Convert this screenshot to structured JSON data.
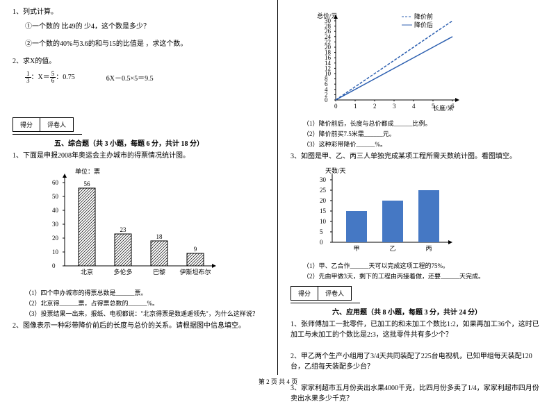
{
  "q1": {
    "title": "1、列式计算。",
    "a": "①一个数的 比49的 少4，这个数是多少？",
    "b": "②一个数的40%与3.6的和与15的比值是 ，求这个数。"
  },
  "q2": {
    "title": "2、求X的值。",
    "eq1a": "1",
    "eq1b": "3",
    "eq1mid": "：X＝",
    "eq1c": "5",
    "eq1d": "6",
    "eq1e": "：0.75",
    "eq2": "6X－0.5×5＝9.5"
  },
  "score": {
    "c1": "得分",
    "c2": "评卷人"
  },
  "sec5": {
    "title": "五、综合题（共 3 小题，每题 6 分，共计 18 分）"
  },
  "s5q1": {
    "stem": "1、下面是申报2008年奥运会主办城市的得票情况统计图。",
    "unit": "单位：票",
    "bars": [
      {
        "label": "北京",
        "value": 56
      },
      {
        "label": "多伦多",
        "value": 23
      },
      {
        "label": "巴黎",
        "value": 18
      },
      {
        "label": "伊斯坦布尔",
        "value": 9
      }
    ],
    "yticks": [
      0,
      10,
      20,
      30,
      40,
      50,
      60
    ],
    "sub1": "（1）四个申办城市的得票总数是______票。",
    "sub2": "（2）北京得______票，占得票总数的______%。",
    "sub3": "（3）投票结果一出来，报纸、电视都说：\"北京得票是数遥遥领先\"，为什么这样说？"
  },
  "s5q2": {
    "stem": "2、图像表示一种彩带降价前后的长度与总价的关系。请根据图中信息填空。"
  },
  "linechart": {
    "ylabel": "总价/元",
    "xlabel": "长度/米",
    "legend1": "降价前",
    "legend2": "降价后",
    "yticks": [
      0,
      2,
      4,
      6,
      8,
      10,
      12,
      14,
      16,
      18,
      20,
      22,
      24,
      26,
      28,
      30
    ],
    "xticks": [
      0,
      1,
      2,
      3,
      4,
      5,
      6
    ],
    "line1_slope": 5,
    "line2_slope": 4,
    "color1": "#2c5fb0",
    "color2": "#2c5fb0"
  },
  "linechart_subs": {
    "s1": "（1）降价前后，长度与总价都成______比例。",
    "s2": "（2）降价前买7.5米需______元。",
    "s3": "（3）这种彩带降价______%。"
  },
  "s5q3": {
    "stem": "3、如图是甲、乙、丙三人单独完成某项工程所需天数统计图。看图填空。",
    "ylabel": "天数/天",
    "bars": [
      {
        "label": "甲",
        "value": 15
      },
      {
        "label": "乙",
        "value": 20
      },
      {
        "label": "丙",
        "value": 25
      }
    ],
    "yticks": [
      0,
      5,
      10,
      15,
      20,
      25,
      30
    ],
    "bar_color": "#4578c4",
    "sub1": "（1）甲、乙合作______天可以完成这项工程的75%。",
    "sub2": "（2）先由甲做3天，剩下的工程由丙接着做，还要______天完成。"
  },
  "sec6": {
    "title": "六、应用题（共 8 小题，每题 3 分，共计 24 分）"
  },
  "s6q1": "1、张师傅加工一批零件，已加工的和未加工个数比1:2，如果再加工36个，这时已加工与未加工的个数比是2:3，这批零件共有多少个？",
  "s6q2": "2、甲乙两个生产小组用了3/4天共同装配了225台电视机，已知甲组每天装配120台，乙组每天装配多少台？",
  "s6q3": "3、家家利超市五月份卖出水果4000千克，比四月份多卖了1/4，家家利超市四月份卖出水果多少千克？",
  "footer": "第 2 页 共 4 页"
}
